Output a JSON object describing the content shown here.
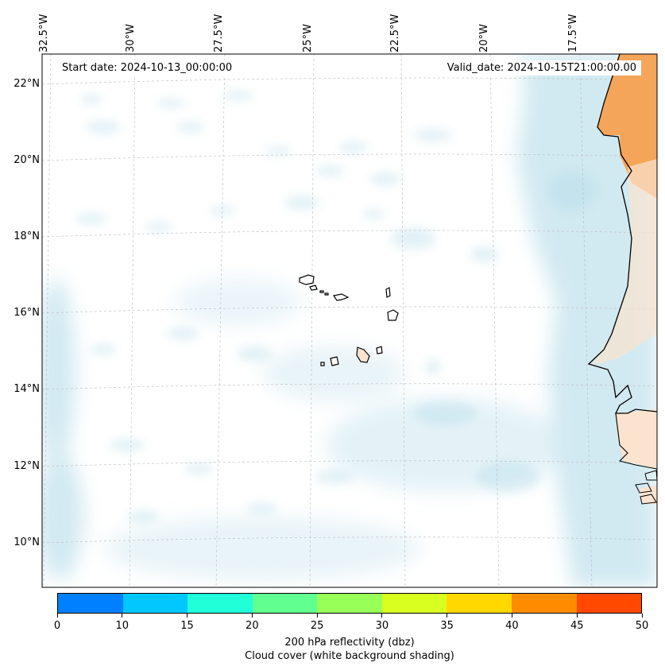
{
  "map": {
    "start_date": "Start date: 2024-10-13_00:00:00",
    "valid_date": "Valid_date: 2024-10-15T21:00:00.00",
    "lon_labels": [
      "32.5°W",
      "30°W",
      "27.5°W",
      "25°W",
      "22.5°W",
      "20°W",
      "17.5°W"
    ],
    "lat_labels": [
      "22°N",
      "20°N",
      "18°N",
      "16°N",
      "14°N",
      "12°N",
      "10°N"
    ],
    "colors": {
      "land": "#f4a55a",
      "land_light": "#fbe3cf",
      "cloud": "#add8e6",
      "grid": "#bbbbbb"
    }
  },
  "colorbar": {
    "ticks": [
      "0",
      "10",
      "15",
      "20",
      "25",
      "30",
      "35",
      "40",
      "45",
      "50"
    ],
    "colors": [
      "#0080ff",
      "#00c8ff",
      "#20ffd8",
      "#60ff90",
      "#98ff58",
      "#d8ff20",
      "#ffd800",
      "#ff8c00",
      "#ff4800"
    ],
    "label": "200 hPa reflectivity (dbz)",
    "sublabel": "Cloud cover (white background shading)"
  }
}
